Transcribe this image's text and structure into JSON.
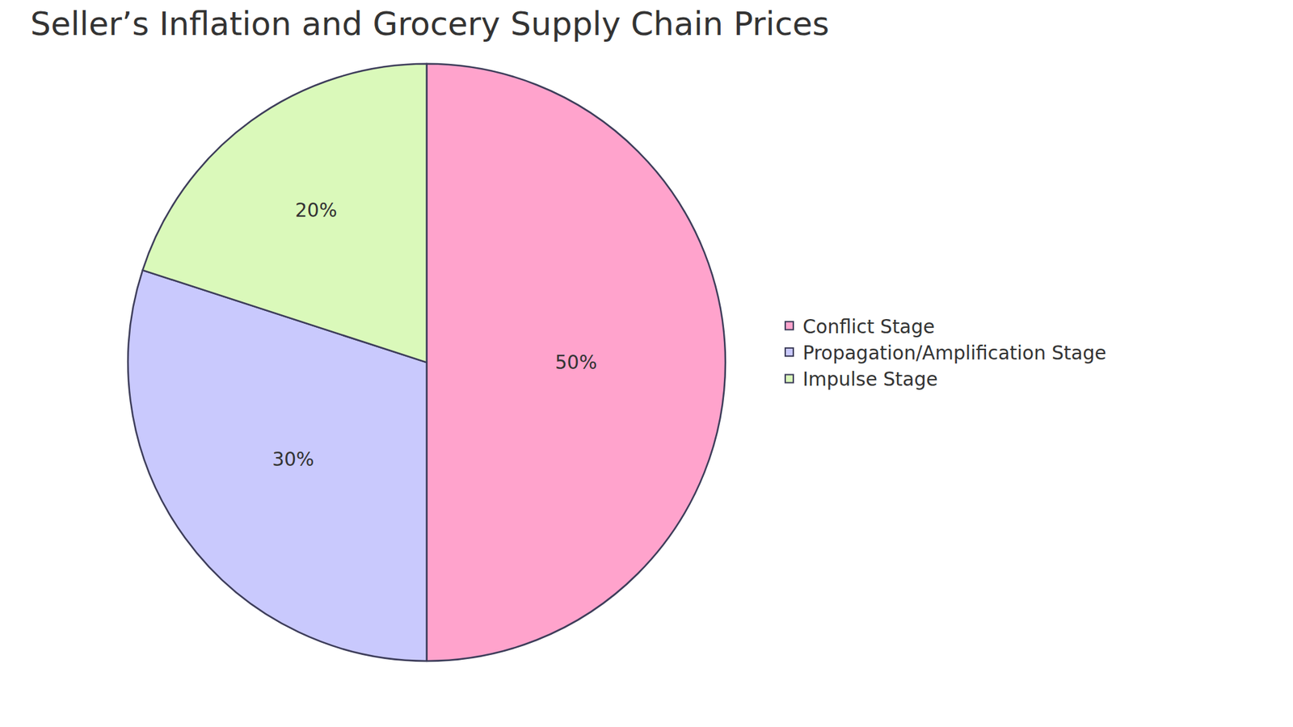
{
  "chart_data": {
    "type": "pie",
    "title": "Seller’s Inflation and Grocery Supply Chain Prices",
    "categories": [
      "Conflict Stage",
      "Propagation/Amplification Stage",
      "Impulse Stage"
    ],
    "values": [
      50,
      30,
      20
    ],
    "value_labels": [
      "50%",
      "30%",
      "20%"
    ],
    "colors": [
      "#FFA3CC",
      "#C9C9FD",
      "#DAF9BA"
    ],
    "data_labels": true,
    "legend": "right"
  }
}
